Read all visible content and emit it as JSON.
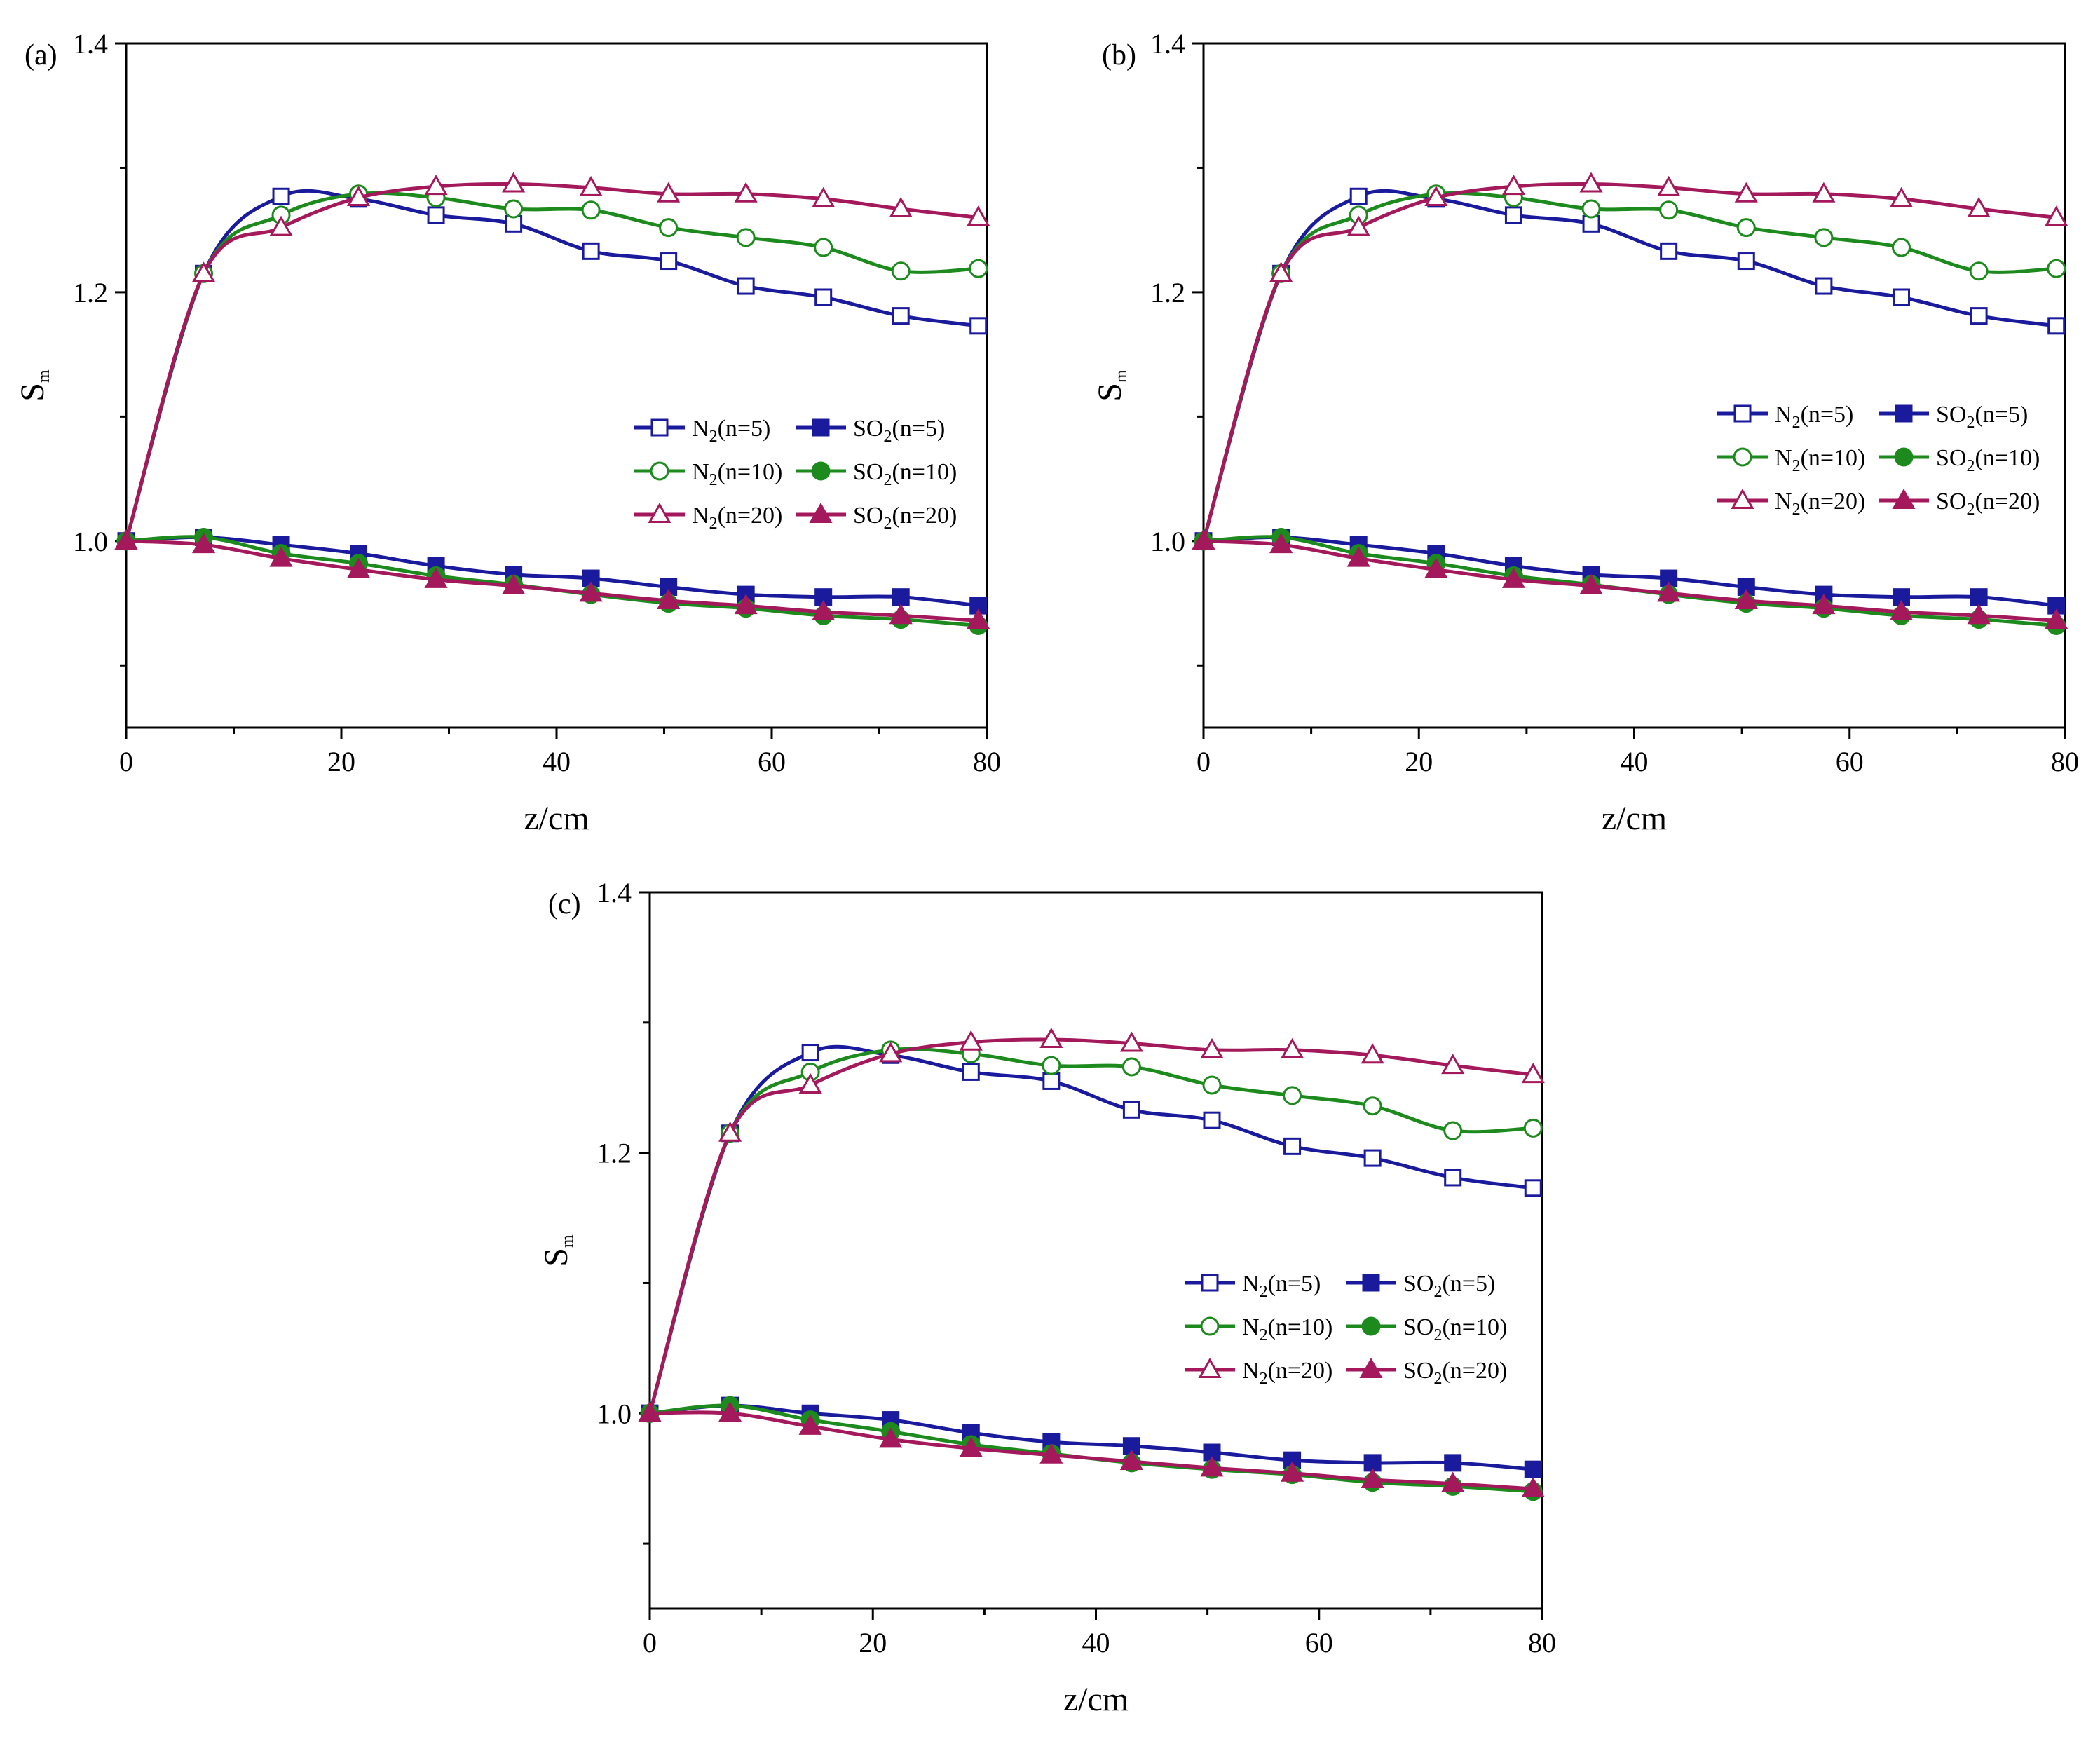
{
  "figure": {
    "description_labels": [
      "(a)",
      "(b)",
      "(c)"
    ]
  },
  "chart_data": [
    {
      "type": "line",
      "panel_label": "(a)",
      "xlabel": "z/cm",
      "ylabel": "S",
      "ylabel_sub": "m",
      "xlim": [
        0,
        80
      ],
      "ylim": [
        0.85,
        1.4
      ],
      "xticks": [
        "0",
        "20",
        "40",
        "60",
        "80"
      ],
      "yticks": [
        "1.0",
        "1.2",
        "1.4"
      ],
      "legend_position": "center-right",
      "series": [
        {
          "name": "N2(n=5)",
          "label_main": "N",
          "label_sub": "2",
          "label_tail": "(n=5)",
          "color": "#1a1a9c",
          "marker": "square-open",
          "x": [
            0,
            7.2,
            14.4,
            21.6,
            28.8,
            36,
            43.2,
            50.4,
            57.6,
            64.8,
            72,
            79.2
          ],
          "y": [
            1.0,
            1.215,
            1.277,
            1.275,
            1.262,
            1.255,
            1.233,
            1.225,
            1.205,
            1.196,
            1.181,
            1.173
          ]
        },
        {
          "name": "SO2(n=5)",
          "label_main": "SO",
          "label_sub": "2",
          "label_tail": "(n=5)",
          "color": "#1a1a9c",
          "marker": "square-filled",
          "x": [
            0,
            7.2,
            14.4,
            21.6,
            28.8,
            36,
            43.2,
            50.4,
            57.6,
            64.8,
            72,
            79.2
          ],
          "y": [
            1.0,
            1.003,
            0.997,
            0.99,
            0.98,
            0.973,
            0.97,
            0.963,
            0.957,
            0.955,
            0.955,
            0.948
          ]
        },
        {
          "name": "N2(n=10)",
          "label_main": "N",
          "label_sub": "2",
          "label_tail": "(n=10)",
          "color": "#1c8a1c",
          "marker": "circle-open",
          "x": [
            0,
            7.2,
            14.4,
            21.6,
            28.8,
            36,
            43.2,
            50.4,
            57.6,
            64.8,
            72,
            79.2
          ],
          "y": [
            1.0,
            1.215,
            1.262,
            1.279,
            1.276,
            1.267,
            1.266,
            1.252,
            1.244,
            1.236,
            1.217,
            1.219
          ]
        },
        {
          "name": "SO2(n=10)",
          "label_main": "SO",
          "label_sub": "2",
          "label_tail": "(n=10)",
          "color": "#1c8a1c",
          "marker": "circle-filled",
          "x": [
            0,
            7.2,
            14.4,
            21.6,
            28.8,
            36,
            43.2,
            50.4,
            57.6,
            64.8,
            72,
            79.2
          ],
          "y": [
            1.0,
            1.003,
            0.99,
            0.982,
            0.972,
            0.965,
            0.957,
            0.95,
            0.946,
            0.94,
            0.937,
            0.932
          ]
        },
        {
          "name": "N2(n=20)",
          "label_main": "N",
          "label_sub": "2",
          "label_tail": "(n=20)",
          "color": "#a3195b",
          "marker": "triangle-open",
          "x": [
            0,
            7.2,
            14.4,
            21.6,
            28.8,
            36,
            43.2,
            50.4,
            57.6,
            64.8,
            72,
            79.2
          ],
          "y": [
            1.0,
            1.215,
            1.252,
            1.276,
            1.285,
            1.287,
            1.284,
            1.279,
            1.279,
            1.275,
            1.267,
            1.26
          ]
        },
        {
          "name": "SO2(n=20)",
          "label_main": "SO",
          "label_sub": "2",
          "label_tail": "(n=20)",
          "color": "#a3195b",
          "marker": "triangle-filled",
          "x": [
            0,
            7.2,
            14.4,
            21.6,
            28.8,
            36,
            43.2,
            50.4,
            57.6,
            64.8,
            72,
            79.2
          ],
          "y": [
            1.0,
            0.997,
            0.986,
            0.977,
            0.969,
            0.964,
            0.958,
            0.952,
            0.948,
            0.943,
            0.94,
            0.936
          ]
        }
      ]
    },
    {
      "type": "line",
      "panel_label": "(b)",
      "xlabel": "z/cm",
      "ylabel": "S",
      "ylabel_sub": "m",
      "xlim": [
        0,
        80
      ],
      "ylim": [
        0.85,
        1.4
      ],
      "xticks": [
        "0",
        "20",
        "40",
        "60",
        "80"
      ],
      "yticks": [
        "1.0",
        "1.2",
        "1.4"
      ],
      "legend_position": "center-right",
      "series": [
        {
          "name": "N2(n=5)",
          "label_main": "N",
          "label_sub": "2",
          "label_tail": "(n=5)",
          "color": "#1a1a9c",
          "marker": "square-open",
          "x": [
            0,
            7.2,
            14.4,
            21.6,
            28.8,
            36,
            43.2,
            50.4,
            57.6,
            64.8,
            72,
            79.2
          ],
          "y": [
            1.0,
            1.215,
            1.277,
            1.275,
            1.262,
            1.255,
            1.233,
            1.225,
            1.205,
            1.196,
            1.181,
            1.173
          ]
        },
        {
          "name": "SO2(n=5)",
          "label_main": "SO",
          "label_sub": "2",
          "label_tail": "(n=5)",
          "color": "#1a1a9c",
          "marker": "square-filled",
          "x": [
            0,
            7.2,
            14.4,
            21.6,
            28.8,
            36,
            43.2,
            50.4,
            57.6,
            64.8,
            72,
            79.2
          ],
          "y": [
            1.0,
            1.003,
            0.997,
            0.99,
            0.98,
            0.973,
            0.97,
            0.963,
            0.957,
            0.955,
            0.955,
            0.948
          ]
        },
        {
          "name": "N2(n=10)",
          "label_main": "N",
          "label_sub": "2",
          "label_tail": "(n=10)",
          "color": "#1c8a1c",
          "marker": "circle-open",
          "x": [
            0,
            7.2,
            14.4,
            21.6,
            28.8,
            36,
            43.2,
            50.4,
            57.6,
            64.8,
            72,
            79.2
          ],
          "y": [
            1.0,
            1.215,
            1.262,
            1.279,
            1.276,
            1.267,
            1.266,
            1.252,
            1.244,
            1.236,
            1.217,
            1.219
          ]
        },
        {
          "name": "SO2(n=10)",
          "label_main": "SO",
          "label_sub": "2",
          "label_tail": "(n=10)",
          "color": "#1c8a1c",
          "marker": "circle-filled",
          "x": [
            0,
            7.2,
            14.4,
            21.6,
            28.8,
            36,
            43.2,
            50.4,
            57.6,
            64.8,
            72,
            79.2
          ],
          "y": [
            1.0,
            1.003,
            0.99,
            0.982,
            0.972,
            0.965,
            0.957,
            0.95,
            0.946,
            0.94,
            0.937,
            0.932
          ]
        },
        {
          "name": "N2(n=20)",
          "label_main": "N",
          "label_sub": "2",
          "label_tail": "(n=20)",
          "color": "#a3195b",
          "marker": "triangle-open",
          "x": [
            0,
            7.2,
            14.4,
            21.6,
            28.8,
            36,
            43.2,
            50.4,
            57.6,
            64.8,
            72,
            79.2
          ],
          "y": [
            1.0,
            1.215,
            1.252,
            1.276,
            1.285,
            1.287,
            1.284,
            1.279,
            1.279,
            1.275,
            1.267,
            1.26
          ]
        },
        {
          "name": "SO2(n=20)",
          "label_main": "SO",
          "label_sub": "2",
          "label_tail": "(n=20)",
          "color": "#a3195b",
          "marker": "triangle-filled",
          "x": [
            0,
            7.2,
            14.4,
            21.6,
            28.8,
            36,
            43.2,
            50.4,
            57.6,
            64.8,
            72,
            79.2
          ],
          "y": [
            1.0,
            0.997,
            0.986,
            0.977,
            0.969,
            0.964,
            0.958,
            0.952,
            0.948,
            0.943,
            0.94,
            0.936
          ]
        }
      ]
    },
    {
      "type": "line",
      "panel_label": "(c)",
      "xlabel": "z/cm",
      "ylabel": "S",
      "ylabel_sub": "m",
      "xlim": [
        0,
        80
      ],
      "ylim": [
        0.85,
        1.4
      ],
      "xticks": [
        "0",
        "20",
        "40",
        "60",
        "80"
      ],
      "yticks": [
        "1.0",
        "1.2",
        "1.4"
      ],
      "legend_position": "center-right",
      "series": [
        {
          "name": "N2(n=5)",
          "label_main": "N",
          "label_sub": "2",
          "label_tail": "(n=5)",
          "color": "#1a1a9c",
          "marker": "square-open",
          "x": [
            0,
            7.2,
            14.4,
            21.6,
            28.8,
            36,
            43.2,
            50.4,
            57.6,
            64.8,
            72,
            79.2
          ],
          "y": [
            1.0,
            1.215,
            1.277,
            1.275,
            1.262,
            1.255,
            1.233,
            1.225,
            1.205,
            1.196,
            1.181,
            1.173
          ]
        },
        {
          "name": "SO2(n=5)",
          "label_main": "SO",
          "label_sub": "2",
          "label_tail": "(n=5)",
          "color": "#1a1a9c",
          "marker": "square-filled",
          "x": [
            0,
            7.2,
            14.4,
            21.6,
            28.8,
            36,
            43.2,
            50.4,
            57.6,
            64.8,
            72,
            79.2
          ],
          "y": [
            1.0,
            1.006,
            1.0,
            0.995,
            0.985,
            0.978,
            0.975,
            0.97,
            0.964,
            0.962,
            0.962,
            0.957
          ]
        },
        {
          "name": "N2(n=10)",
          "label_main": "N",
          "label_sub": "2",
          "label_tail": "(n=10)",
          "color": "#1c8a1c",
          "marker": "circle-open",
          "x": [
            0,
            7.2,
            14.4,
            21.6,
            28.8,
            36,
            43.2,
            50.4,
            57.6,
            64.8,
            72,
            79.2
          ],
          "y": [
            1.0,
            1.215,
            1.262,
            1.279,
            1.276,
            1.267,
            1.266,
            1.252,
            1.244,
            1.236,
            1.217,
            1.219
          ]
        },
        {
          "name": "SO2(n=10)",
          "label_main": "SO",
          "label_sub": "2",
          "label_tail": "(n=10)",
          "color": "#1c8a1c",
          "marker": "circle-filled",
          "x": [
            0,
            7.2,
            14.4,
            21.6,
            28.8,
            36,
            43.2,
            50.4,
            57.6,
            64.8,
            72,
            79.2
          ],
          "y": [
            1.0,
            1.006,
            0.995,
            0.986,
            0.976,
            0.969,
            0.962,
            0.957,
            0.953,
            0.947,
            0.944,
            0.94
          ]
        },
        {
          "name": "N2(n=20)",
          "label_main": "N",
          "label_sub": "2",
          "label_tail": "(n=20)",
          "color": "#a3195b",
          "marker": "triangle-open",
          "x": [
            0,
            7.2,
            14.4,
            21.6,
            28.8,
            36,
            43.2,
            50.4,
            57.6,
            64.8,
            72,
            79.2
          ],
          "y": [
            1.0,
            1.215,
            1.252,
            1.276,
            1.285,
            1.287,
            1.284,
            1.279,
            1.279,
            1.275,
            1.267,
            1.26
          ]
        },
        {
          "name": "SO2(n=20)",
          "label_main": "SO",
          "label_sub": "2",
          "label_tail": "(n=20)",
          "color": "#a3195b",
          "marker": "triangle-filled",
          "x": [
            0,
            7.2,
            14.4,
            21.6,
            28.8,
            36,
            43.2,
            50.4,
            57.6,
            64.8,
            72,
            79.2
          ],
          "y": [
            1.0,
            1.0,
            0.99,
            0.98,
            0.973,
            0.968,
            0.963,
            0.958,
            0.954,
            0.949,
            0.946,
            0.942
          ]
        }
      ]
    }
  ]
}
